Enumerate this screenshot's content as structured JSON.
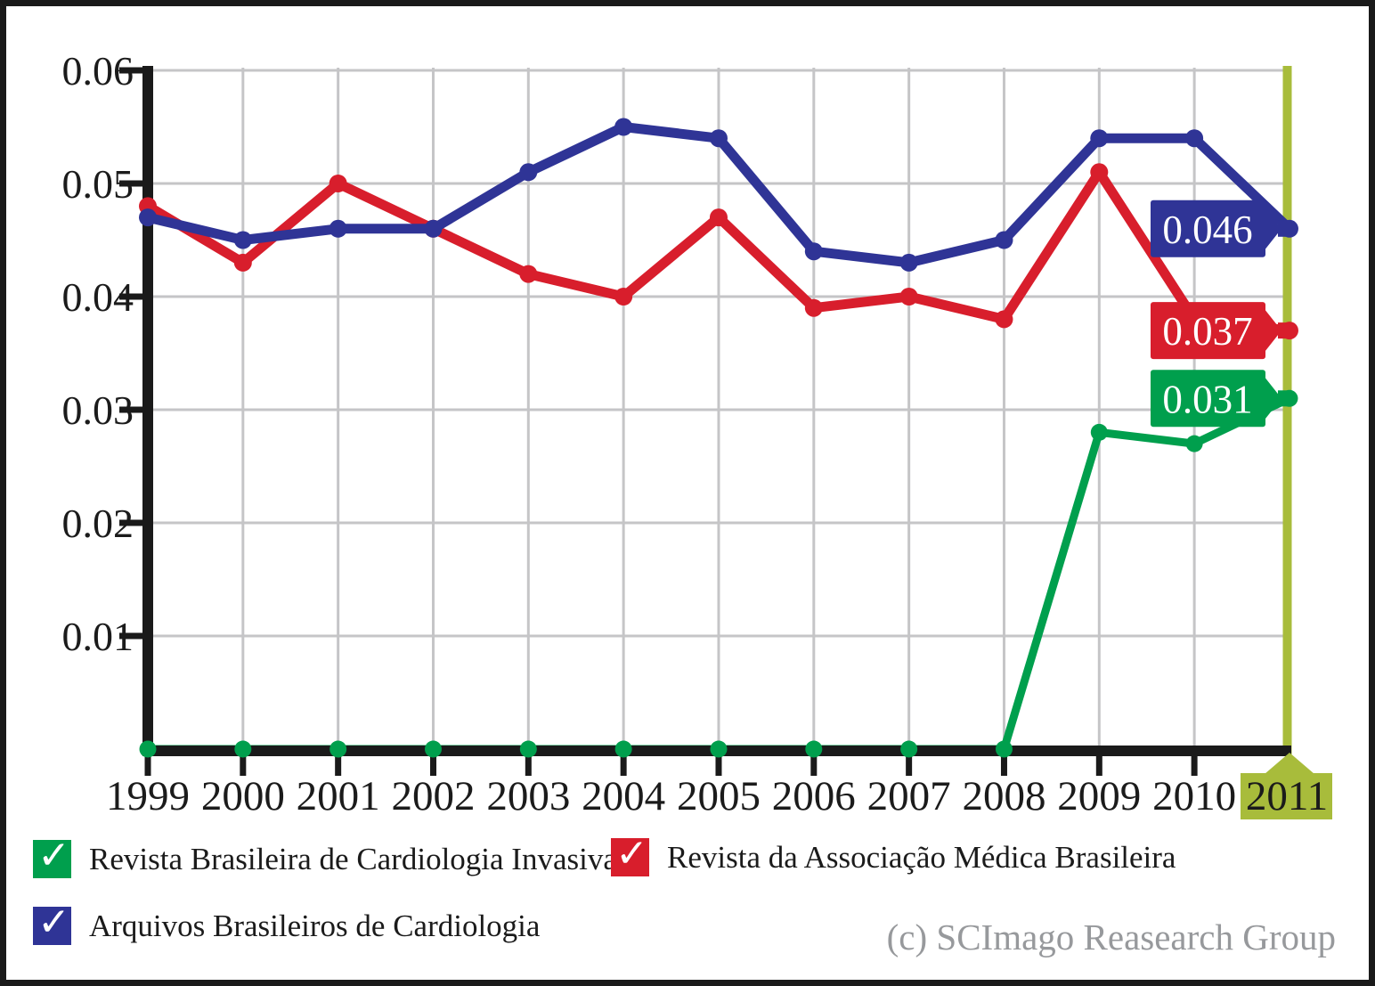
{
  "chart_data": {
    "type": "line",
    "title": "",
    "x_labels": [
      "1999",
      "2000",
      "2001",
      "2002",
      "2003",
      "2004",
      "2005",
      "2006",
      "2007",
      "2008",
      "2009",
      "2010",
      "2011"
    ],
    "y_ticks": [
      "0.06",
      "0.05",
      "0.04",
      "0.03",
      "0.02",
      "0.01"
    ],
    "ylim": [
      0,
      0.06
    ],
    "grid": true,
    "legend_position": "bottom",
    "highlight": {
      "year": "2011",
      "color": "#a8bc3b"
    },
    "series": [
      {
        "name": "Revista Brasileira de Cardiologia Invasiva",
        "color": "#009f4d",
        "values": [
          0,
          0,
          0,
          0,
          0,
          0,
          0,
          0,
          0,
          0,
          0.028,
          0.027,
          0.031
        ],
        "end_label": "0.031"
      },
      {
        "name": "Revista da Associação Médica Brasileira",
        "color": "#d81e2c",
        "values": [
          0.048,
          0.043,
          0.05,
          0.046,
          0.042,
          0.04,
          0.047,
          0.039,
          0.04,
          0.038,
          0.051,
          0.038,
          0.037
        ],
        "end_label": "0.037"
      },
      {
        "name": "Arquivos Brasileiros de Cardiologia",
        "color": "#2f3496",
        "values": [
          0.047,
          0.045,
          0.046,
          0.046,
          0.051,
          0.055,
          0.054,
          0.044,
          0.043,
          0.045,
          0.054,
          0.054,
          0.046
        ],
        "end_label": "0.046"
      }
    ]
  },
  "legend": {
    "check_glyph": "✓",
    "items": [
      {
        "label": "Revista Brasileira de Cardiologia Invasiva",
        "color": "#009f4d"
      },
      {
        "label": "Revista da Associação Médica Brasileira",
        "color": "#d81e2c"
      },
      {
        "label": "Arquivos Brasileiros de Cardiologia",
        "color": "#2f3496"
      }
    ]
  },
  "footer": {
    "copyright": "(c) SCImago Reasearch Group"
  }
}
